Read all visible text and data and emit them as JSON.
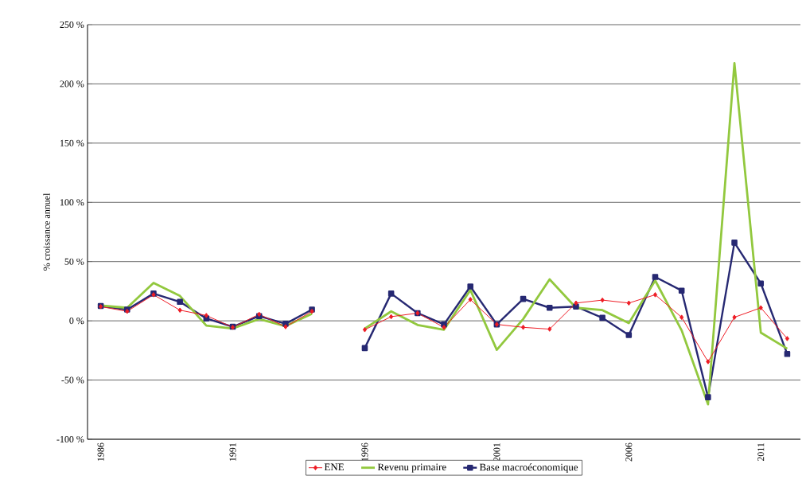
{
  "chart_data": {
    "type": "line",
    "ylabel": "% croissance annuel",
    "categories": [
      "1986",
      null,
      null,
      null,
      null,
      "1991",
      null,
      null,
      null,
      null,
      "1996",
      null,
      null,
      null,
      null,
      "2001",
      null,
      null,
      null,
      null,
      "2006",
      null,
      null,
      null,
      null,
      "2011",
      null
    ],
    "series": [
      {
        "name": "ENE",
        "color": "#ee1c25",
        "marker": "diamond",
        "values": [
          12,
          8,
          22,
          9,
          4.5,
          -5.5,
          5.5,
          -5,
          8,
          null,
          -7.5,
          3.5,
          6.5,
          -5.5,
          18,
          -3,
          -5.5,
          -7,
          15,
          17.5,
          15,
          22,
          3,
          -34.5,
          3,
          11,
          -15
        ]
      },
      {
        "name": "Revenu primaire",
        "color": "#92c83e",
        "marker": "none",
        "values": [
          13,
          11,
          32,
          21,
          -4,
          -6.5,
          1.5,
          -4.5,
          6,
          null,
          -6.5,
          8,
          -3.5,
          -7.5,
          26,
          -24.5,
          1.5,
          35,
          11,
          9,
          -2,
          34,
          -8,
          -70.5,
          217.5,
          -10,
          -23.5
        ]
      },
      {
        "name": "Base macroéconomique",
        "color": "#262872",
        "marker": "square",
        "values": [
          12.5,
          9.5,
          23,
          16,
          2,
          -5,
          4,
          -2.5,
          9.5,
          null,
          -23,
          23,
          6.5,
          -3,
          29,
          -3,
          18.5,
          11,
          12,
          2.5,
          -12,
          37,
          25.5,
          -64.5,
          66,
          31.5,
          -28
        ]
      }
    ],
    "ylim": [
      -100,
      250
    ],
    "yticks": [
      {
        "value": -100,
        "label": "-100 %"
      },
      {
        "value": -50,
        "label": "-50 %"
      },
      {
        "value": 0,
        "label": "0 %"
      },
      {
        "value": 50,
        "label": "50 %"
      },
      {
        "value": 100,
        "label": "100 %"
      },
      {
        "value": 150,
        "label": "150 %"
      },
      {
        "value": 200,
        "label": "200 %"
      },
      {
        "value": 250,
        "label": "250 %"
      }
    ],
    "grid": "y",
    "legend": "bottom"
  }
}
